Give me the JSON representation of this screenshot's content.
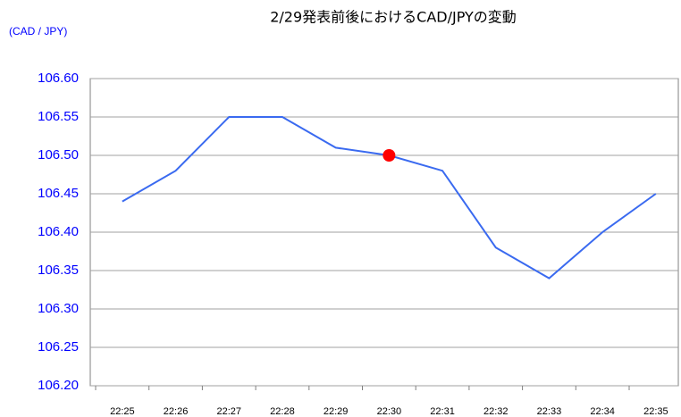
{
  "chart_data": {
    "type": "line",
    "title": "2/29発表前後におけるCAD/JPYの変動",
    "y_axis_label": "(CAD / JPY)",
    "categories": [
      "22:25",
      "22:26",
      "22:27",
      "22:28",
      "22:29",
      "22:30",
      "22:31",
      "22:32",
      "22:33",
      "22:34",
      "22:35"
    ],
    "values": [
      106.44,
      106.48,
      106.55,
      106.55,
      106.51,
      106.5,
      106.48,
      106.38,
      106.34,
      106.4,
      106.45
    ],
    "color": "#3a6af0",
    "highlight": {
      "index": 5,
      "color": "#ff0000"
    },
    "ylim": [
      106.2,
      106.6
    ],
    "yticks": [
      {
        "value": 106.2,
        "label": "106.20"
      },
      106.25,
      {
        "value": 106.3,
        "label": "106.30"
      },
      106.35,
      {
        "value": 106.4,
        "label": "106.40"
      },
      106.45,
      {
        "value": 106.5,
        "label": "106.50"
      },
      106.55,
      {
        "value": 106.6,
        "label": "106.60"
      }
    ],
    "grid": true
  }
}
